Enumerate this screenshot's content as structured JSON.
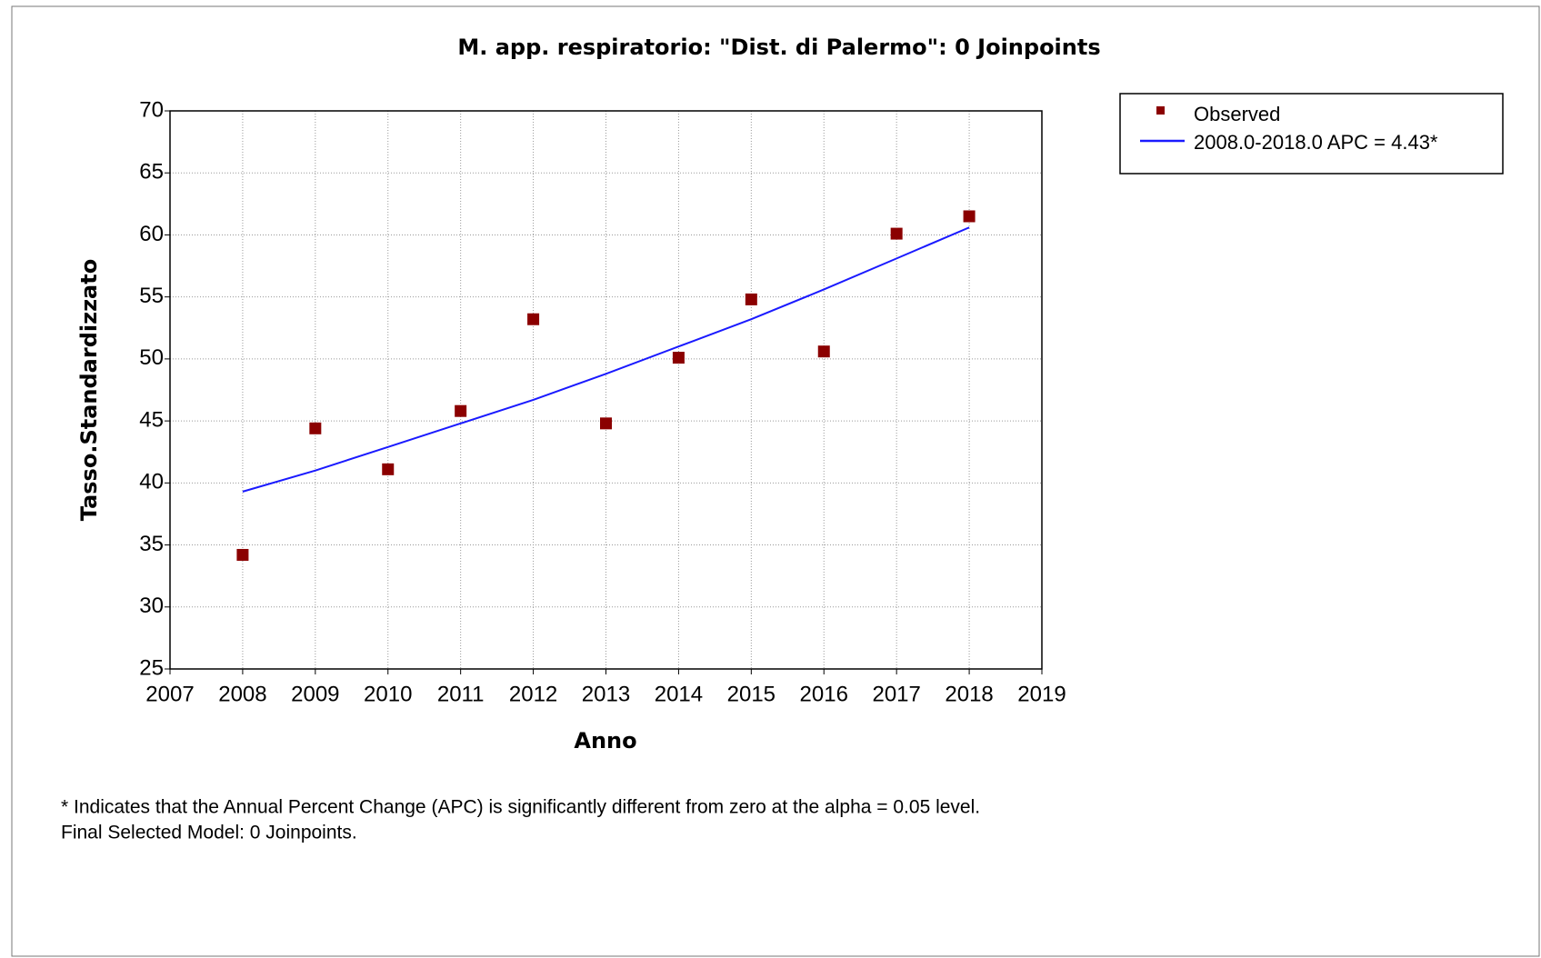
{
  "chart_data": {
    "type": "scatter",
    "title": "M. app. respiratorio: \"Dist. di Palermo\": 0 Joinpoints",
    "x_label": "Anno",
    "y_label": "Tasso.Standardizzato",
    "x": [
      2008,
      2009,
      2010,
      2011,
      2012,
      2013,
      2014,
      2015,
      2016,
      2017,
      2018
    ],
    "series": [
      {
        "name": "Observed",
        "type": "scatter",
        "color": "#8b0000",
        "values": [
          34.2,
          44.4,
          41.1,
          45.8,
          53.2,
          44.8,
          50.1,
          54.8,
          50.6,
          60.1,
          61.5
        ]
      },
      {
        "name": "2008.0-2018.0 APC  = 4.43*",
        "type": "line",
        "color": "#1a1aff",
        "values": [
          39.3,
          41.0,
          42.9,
          44.8,
          46.7,
          48.8,
          51.0,
          53.2,
          55.6,
          58.1,
          60.6
        ]
      }
    ],
    "xlim": [
      2007,
      2019
    ],
    "xticks": [
      2007,
      2008,
      2009,
      2010,
      2011,
      2012,
      2013,
      2014,
      2015,
      2016,
      2017,
      2018,
      2019
    ],
    "ylim": [
      25,
      70
    ],
    "yticks": [
      25,
      30,
      35,
      40,
      45,
      50,
      55,
      60,
      65,
      70
    ],
    "grid": true,
    "legend": "outside-right-top",
    "footnotes": [
      "* Indicates that the Annual Percent Change (APC) is significantly different from zero at the alpha = 0.05 level.",
      "Final Selected Model: 0 Joinpoints."
    ]
  }
}
